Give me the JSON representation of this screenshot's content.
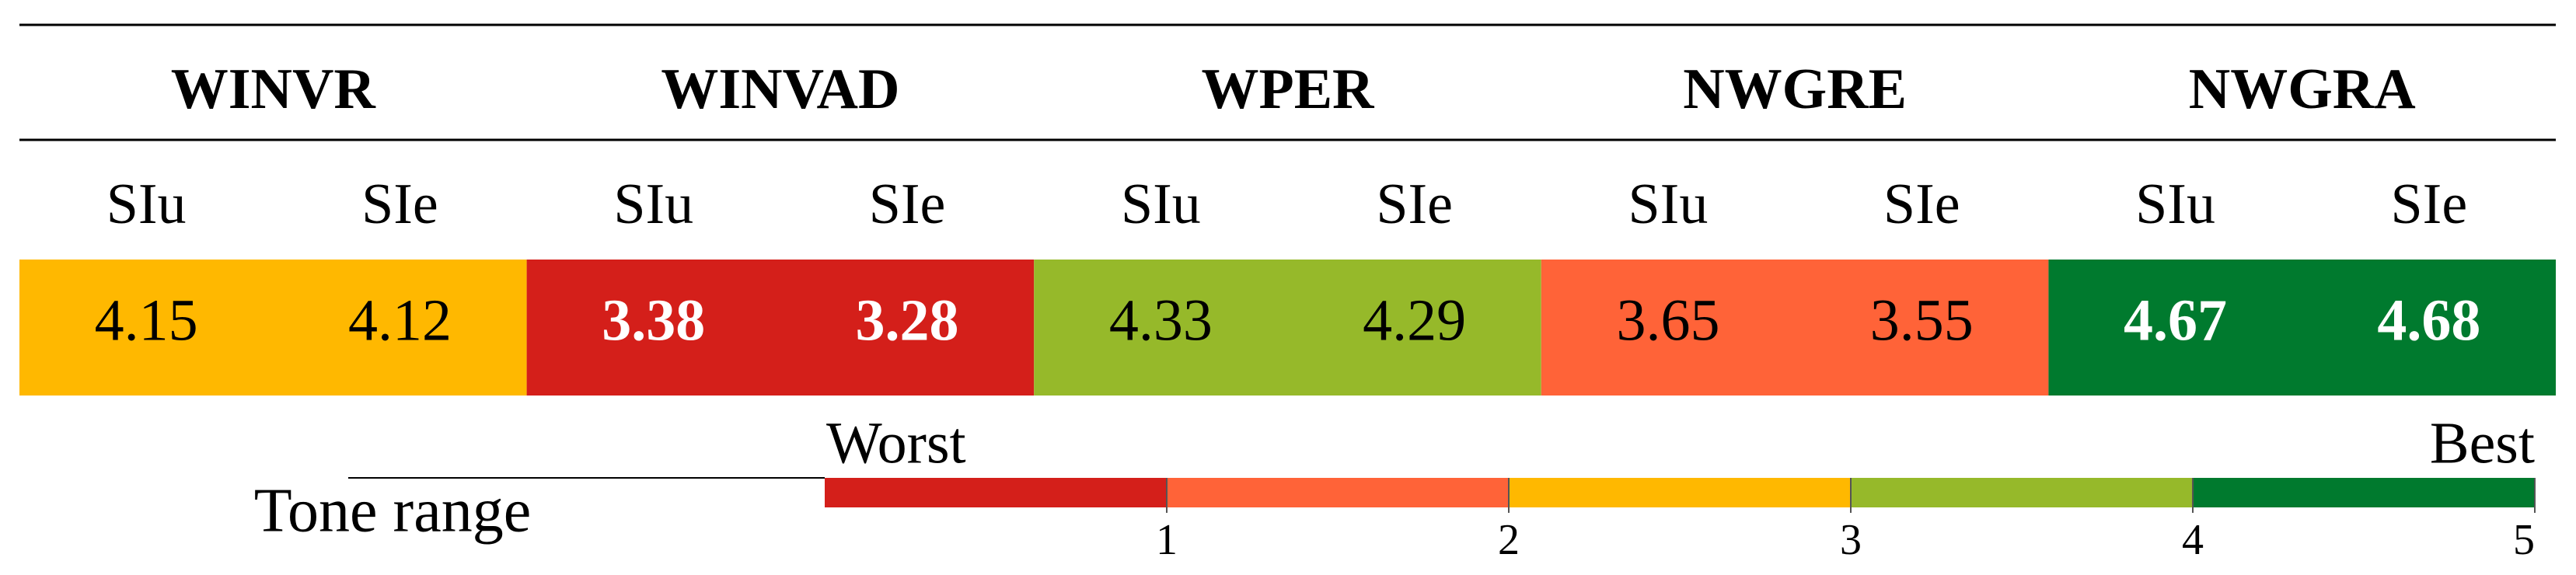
{
  "table": {
    "groups": [
      {
        "name": "WINVR",
        "columns": [
          "SIu",
          "SIe"
        ],
        "values": [
          4.15,
          4.12
        ],
        "color": "#FFB800",
        "text_color": "#000000",
        "bold": false
      },
      {
        "name": "WINVAD",
        "columns": [
          "SIu",
          "SIe"
        ],
        "values": [
          3.38,
          3.28
        ],
        "color": "#D41F1A",
        "text_color": "#FFFFFF",
        "bold": true
      },
      {
        "name": "WPER",
        "columns": [
          "SIu",
          "SIe"
        ],
        "values": [
          4.33,
          4.29
        ],
        "color": "#96B92A",
        "text_color": "#000000",
        "bold": false
      },
      {
        "name": "NWGRE",
        "columns": [
          "SIu",
          "SIe"
        ],
        "values": [
          3.65,
          3.55
        ],
        "color": "#FF6338",
        "text_color": "#000000",
        "bold": false
      },
      {
        "name": "NWGRA",
        "columns": [
          "SIu",
          "SIe"
        ],
        "values": [
          4.67,
          4.68
        ],
        "color": "#007A2E",
        "text_color": "#FFFFFF",
        "bold": true
      }
    ]
  },
  "legend": {
    "title": "Tone range",
    "low_label": "Worst",
    "high_label": "Best",
    "xlim": [
      0,
      5
    ],
    "ticks": [
      1,
      2,
      3,
      4,
      5
    ],
    "colors": [
      "#D41F1A",
      "#FF6338",
      "#FFB800",
      "#96B92A",
      "#007A2E"
    ]
  }
}
